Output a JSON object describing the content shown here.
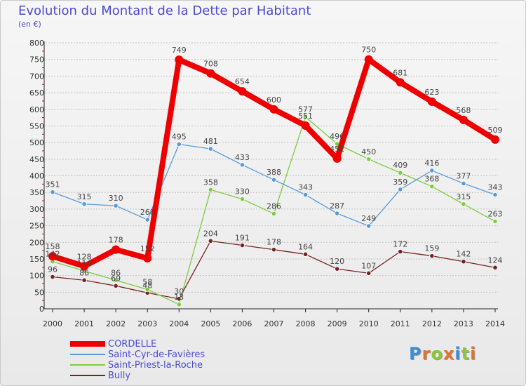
{
  "title": "Evolution du Montant de la Dette par Habitant",
  "subtitle": "(en €)",
  "logo": "Proxiti",
  "colors": {
    "title": "#4b4bd1",
    "cordelle": "#ee0000",
    "saint_cyr": "#5b9bd5",
    "saint_priest": "#7ccc3c",
    "bully": "#772222"
  },
  "chart_data": {
    "type": "line",
    "title": "Evolution du Montant de la Dette par Habitant",
    "subtitle": "(en €)",
    "xlabel": "",
    "ylabel": "",
    "ylim": [
      0,
      800
    ],
    "yticks": [
      0,
      50,
      100,
      150,
      200,
      250,
      300,
      350,
      400,
      450,
      500,
      550,
      600,
      650,
      700,
      750,
      800
    ],
    "grid": "horizontal dashed",
    "legend_position": "bottom-left",
    "x": [
      "2000",
      "2001",
      "2002",
      "2003",
      "2004",
      "2005",
      "2006",
      "2007",
      "2008",
      "2009",
      "2010",
      "2011",
      "2012",
      "2013",
      "2014"
    ],
    "series": [
      {
        "name": "CORDELLE",
        "color": "#ee0000",
        "values": [
          158,
          128,
          178,
          152,
          749,
          708,
          654,
          600,
          551,
          452,
          750,
          681,
          623,
          568,
          509
        ]
      },
      {
        "name": "Saint-Cyr-de-Favières",
        "color": "#5b9bd5",
        "values": [
          351,
          315,
          310,
          268,
          495,
          481,
          433,
          388,
          343,
          287,
          249,
          359,
          416,
          377,
          343
        ]
      },
      {
        "name": "Saint-Priest-la-Roche",
        "color": "#7ccc3c",
        "values": [
          142,
          114,
          86,
          58,
          13,
          358,
          330,
          286,
          577,
          496,
          450,
          409,
          368,
          315,
          263
        ]
      },
      {
        "name": "Bully",
        "color": "#772222",
        "values": [
          96,
          86,
          69,
          48,
          30,
          204,
          191,
          178,
          164,
          120,
          107,
          172,
          159,
          142,
          124
        ]
      }
    ]
  }
}
